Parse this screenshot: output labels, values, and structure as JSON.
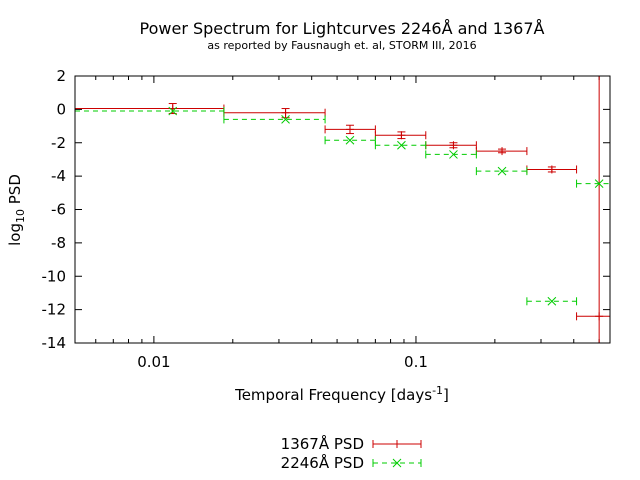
{
  "chart_data": {
    "type": "scatter",
    "title": "Power Spectrum for Lightcurves 2246Å and 1367Å",
    "subtitle": "as reported by Fausnaugh et. al, STORM III, 2016",
    "xlabel": {
      "main": "Temporal Frequency [days",
      "sup": "-1",
      "end": "]"
    },
    "ylabel": {
      "main": "log",
      "sub": "10",
      "end": " PSD"
    },
    "x_scale": "log",
    "xlim": [
      0.005,
      0.55
    ],
    "ylim": [
      -14,
      2
    ],
    "x_ticks": [
      {
        "value": 0.01,
        "label": "0.01"
      },
      {
        "value": 0.1,
        "label": "0.1"
      }
    ],
    "y_ticks": [
      {
        "value": 2,
        "label": "2"
      },
      {
        "value": 0,
        "label": "0"
      },
      {
        "value": -2,
        "label": "-2"
      },
      {
        "value": -4,
        "label": "-4"
      },
      {
        "value": -6,
        "label": "-6"
      },
      {
        "value": -8,
        "label": "-8"
      },
      {
        "value": -10,
        "label": "-10"
      },
      {
        "value": -12,
        "label": "-12"
      },
      {
        "value": -14,
        "label": "-14"
      }
    ],
    "grid": false,
    "legend_position": "bottom-center",
    "series": [
      {
        "name": "1367Å PSD",
        "color": "#cc0000",
        "style": "solid",
        "marker": "plus",
        "points": [
          {
            "x": 0.0118,
            "y": 0.05,
            "xlo": 0.005,
            "xhi": 0.0185,
            "ylo": -0.25,
            "yhi": 0.35
          },
          {
            "x": 0.0318,
            "y": -0.2,
            "xlo": 0.0185,
            "xhi": 0.045,
            "ylo": -0.5,
            "yhi": 0.05
          },
          {
            "x": 0.056,
            "y": -1.2,
            "xlo": 0.045,
            "xhi": 0.07,
            "ylo": -1.45,
            "yhi": -0.95
          },
          {
            "x": 0.088,
            "y": -1.55,
            "xlo": 0.07,
            "xhi": 0.109,
            "ylo": -1.75,
            "yhi": -1.35
          },
          {
            "x": 0.139,
            "y": -2.15,
            "xlo": 0.109,
            "xhi": 0.17,
            "ylo": -2.3,
            "yhi": -2.0
          },
          {
            "x": 0.213,
            "y": -2.5,
            "xlo": 0.17,
            "xhi": 0.265,
            "ylo": -2.6,
            "yhi": -2.38
          },
          {
            "x": 0.33,
            "y": -3.6,
            "xlo": 0.265,
            "xhi": 0.41,
            "ylo": -3.75,
            "yhi": -3.45
          },
          {
            "x": 0.5,
            "y": -12.4,
            "xlo": 0.41,
            "xhi": 0.55,
            "ylo": -14,
            "yhi": 2
          }
        ]
      },
      {
        "name": "2246Å PSD",
        "color": "#00cc00",
        "style": "dashed",
        "marker": "cross",
        "points": [
          {
            "x": 0.0118,
            "y": -0.1,
            "xlo": 0.005,
            "xhi": 0.0185
          },
          {
            "x": 0.0318,
            "y": -0.6,
            "xlo": 0.0185,
            "xhi": 0.045
          },
          {
            "x": 0.056,
            "y": -1.85,
            "xlo": 0.045,
            "xhi": 0.07
          },
          {
            "x": 0.088,
            "y": -2.15,
            "xlo": 0.07,
            "xhi": 0.109
          },
          {
            "x": 0.139,
            "y": -2.7,
            "xlo": 0.109,
            "xhi": 0.17
          },
          {
            "x": 0.213,
            "y": -3.7,
            "xlo": 0.17,
            "xhi": 0.265
          },
          {
            "x": 0.33,
            "y": -11.5,
            "xlo": 0.265,
            "xhi": 0.41
          },
          {
            "x": 0.5,
            "y": -4.45,
            "xlo": 0.41,
            "xhi": 0.55
          }
        ]
      }
    ]
  }
}
